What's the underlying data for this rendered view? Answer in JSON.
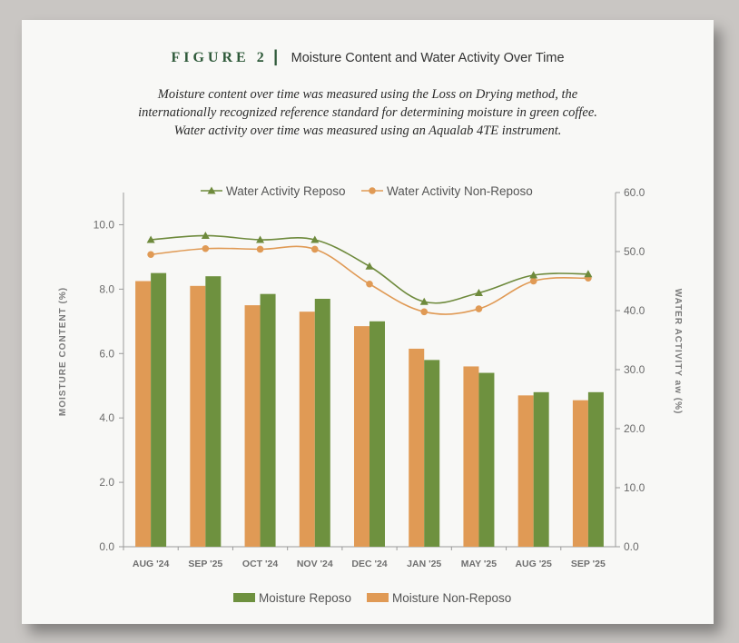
{
  "figure": {
    "label": "FIGURE 2",
    "separator": "|",
    "title": "Moisture Content and Water Activity Over Time",
    "caption_lines": [
      "Moisture content over time was measured using the Loss on Drying method, the",
      "internationally recognized reference standard for determining moisture in green coffee.",
      "Water activity over time was measured using an Aqualab 4TE instrument."
    ]
  },
  "chart_data": {
    "type": "bar+line",
    "categories": [
      "AUG '24",
      "SEP '25",
      "OCT '24",
      "NOV '24",
      "DEC '24",
      "JAN '25",
      "MAY '25",
      "AUG '25",
      "SEP '25"
    ],
    "left_axis": {
      "label": "MOISTURE CONTENT (%)",
      "ylim": [
        0,
        11
      ],
      "ticks": [
        "0.0",
        "2.0",
        "4.0",
        "6.0",
        "8.0",
        "10.0"
      ],
      "tick_values": [
        0,
        2,
        4,
        6,
        8,
        10
      ]
    },
    "right_axis": {
      "label": "WATER ACTIVITY aw (%)",
      "ylim": [
        0,
        60
      ],
      "ticks": [
        "0.0",
        "10.0",
        "20.0",
        "30.0",
        "40.0",
        "50.0",
        "60.0"
      ],
      "tick_values": [
        0,
        10,
        20,
        30,
        40,
        50,
        60
      ]
    },
    "bar_series": [
      {
        "name": "Moisture Non-Reposo",
        "color": "#e09a55",
        "values": [
          8.25,
          8.1,
          7.5,
          7.3,
          6.85,
          6.15,
          5.6,
          4.7,
          4.55
        ]
      },
      {
        "name": "Moisture Reposo",
        "color": "#6e913f",
        "values": [
          8.5,
          8.4,
          7.85,
          7.7,
          7.0,
          5.8,
          5.4,
          4.8,
          4.8
        ]
      }
    ],
    "line_series": [
      {
        "name": "Water Activity Reposo",
        "color": "#6e8a3c",
        "marker": "triangle",
        "values": [
          52.0,
          52.7,
          52.0,
          52.0,
          47.5,
          41.5,
          43.0,
          46.0,
          46.2
        ]
      },
      {
        "name": "Water Activity Non-Reposo",
        "color": "#e09a55",
        "marker": "circle",
        "values": [
          49.5,
          50.5,
          50.4,
          50.4,
          44.5,
          39.8,
          40.3,
          45.0,
          45.5
        ]
      }
    ],
    "legend_top": [
      "Water Activity Reposo",
      "Water Activity Non-Reposo"
    ],
    "legend_bottom": [
      "Moisture Reposo",
      "Moisture Non-Reposo"
    ],
    "grid": false
  }
}
